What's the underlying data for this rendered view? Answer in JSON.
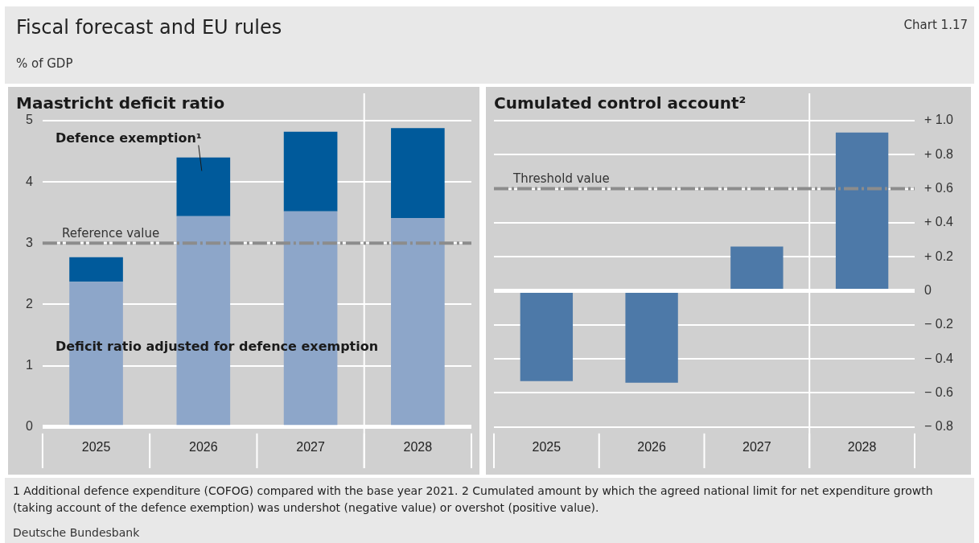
{
  "chart_data": [
    {
      "type": "other",
      "title": "Fiscal forecast and EU rules",
      "subtitle": "% of GDP",
      "annotations": [
        "Chart 1.17",
        "1 Additional defence expenditure (COFOG) compared with the base year 2021. 2 Cumulated amount by which the agreed national limit for net expenditure growth (taking account of the defence exemption) was undershot (negative value) or overshot (positive value).",
        "Deutsche Bundesbank"
      ]
    },
    {
      "type": "bar",
      "title": "Maastricht deficit ratio",
      "categories": [
        "2025",
        "2026",
        "2027",
        "2028"
      ],
      "stacked": true,
      "series": [
        {
          "name": "Deficit ratio adjusted for defence exemption",
          "color": "#8da6c9",
          "values": [
            2.37,
            3.44,
            3.52,
            3.41
          ]
        },
        {
          "name": "Defence exemption¹",
          "color": "#005a9b",
          "values": [
            0.4,
            0.96,
            1.3,
            1.47
          ]
        }
      ],
      "ylim": [
        0,
        5
      ],
      "yticks": [
        0,
        1,
        2,
        3,
        4,
        5
      ],
      "grid": "y",
      "legend": false,
      "ref_lines": [
        {
          "axis": "y",
          "value": 3,
          "label": "Reference value",
          "color": "#8c8c8c",
          "line_style": "dashed"
        }
      ]
    },
    {
      "type": "bar",
      "title": "Cumulated control account²",
      "categories": [
        "2025",
        "2026",
        "2027",
        "2028"
      ],
      "series": [
        {
          "color": "#4d79a8",
          "values": [
            -0.53,
            -0.54,
            0.26,
            0.93
          ]
        }
      ],
      "ylim": [
        -0.8,
        1.0
      ],
      "yticks": [
        {
          "value": -0.8,
          "label": "− 0.8"
        },
        {
          "value": -0.6,
          "label": "− 0.6"
        },
        {
          "value": -0.4,
          "label": "− 0.4"
        },
        {
          "value": -0.2,
          "label": "− 0.2"
        },
        0,
        {
          "value": 0.2,
          "label": "+ 0.2"
        },
        {
          "value": 0.4,
          "label": "+ 0.4"
        },
        {
          "value": 0.6,
          "label": "+ 0.6"
        },
        {
          "value": 0.8,
          "label": "+ 0.8"
        },
        {
          "value": 1.0,
          "label": "+ 1.0"
        }
      ],
      "grid": "y",
      "legend": false,
      "ref_lines": [
        {
          "axis": "y",
          "value": 0.6,
          "label": "Threshold value",
          "color": "#8c8c8c",
          "line_style": "dashed"
        }
      ]
    }
  ]
}
